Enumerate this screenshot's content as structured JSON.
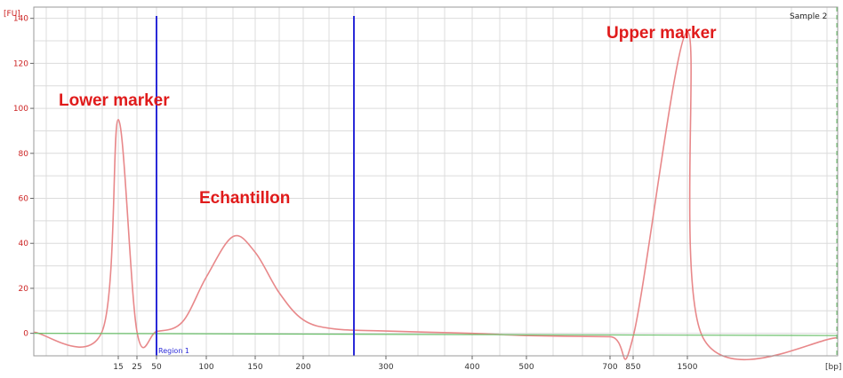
{
  "chart_data": {
    "type": "line",
    "sample_label": "Sample 2",
    "y_unit_label": "[FU]",
    "x_unit_label": "[bp]",
    "ylim": [
      -10,
      145
    ],
    "yticks": [
      0,
      20,
      40,
      60,
      80,
      100,
      120,
      140
    ],
    "x_tick_labels": [
      "15",
      "25",
      "50",
      "100",
      "150",
      "200",
      "300",
      "400",
      "500",
      "700",
      "850",
      "1500"
    ],
    "region_label": "Region 1",
    "grid": true,
    "annotations": [
      "Lower marker",
      "Echantillon",
      "Upper marker"
    ],
    "series": [
      {
        "color": "#e8888a",
        "points": [
          [
            "start",
            0.5
          ],
          [
            "10",
            1
          ],
          [
            "15",
            95
          ],
          [
            "25",
            0.8
          ],
          [
            "50",
            0.8
          ],
          [
            "75",
            5
          ],
          [
            "100",
            25
          ],
          [
            "125",
            43
          ],
          [
            "150",
            36
          ],
          [
            "175",
            18
          ],
          [
            "200",
            6
          ],
          [
            "250",
            2
          ],
          [
            "300",
            1
          ],
          [
            "400",
            0
          ],
          [
            "500",
            -1
          ],
          [
            "700",
            -1.5
          ],
          [
            "850",
            -1.5
          ],
          [
            "1500",
            134
          ],
          [
            "1600",
            -1.5
          ],
          [
            "end",
            -2
          ]
        ]
      },
      {
        "color": "#6cc06c",
        "points": [
          [
            "start",
            0
          ],
          [
            "end",
            -1
          ]
        ]
      }
    ],
    "colors": {
      "signal": "#e8888a",
      "baseline": "#6cc06c",
      "region_lines": "#2a2ad8",
      "annotation": "#e01b1b",
      "grid": "#dcdcdc"
    }
  }
}
